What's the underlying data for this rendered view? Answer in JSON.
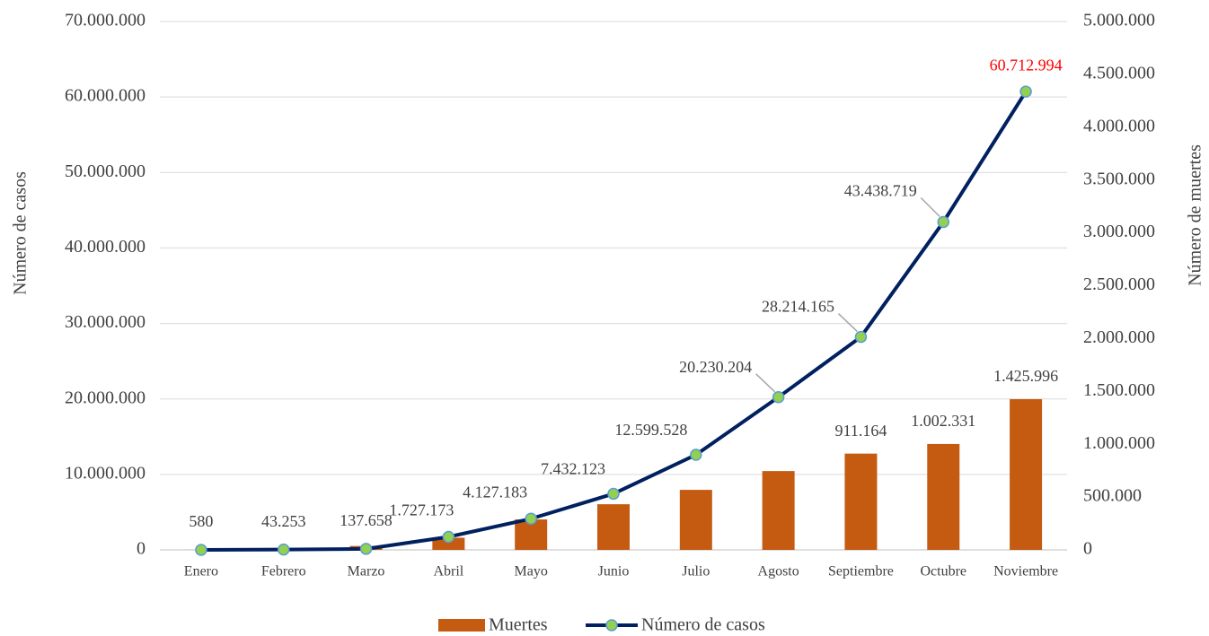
{
  "chart_data": {
    "type": "bar-line",
    "categories": [
      "Enero",
      "Febrero",
      "Marzo",
      "Abril",
      "Mayo",
      "Junio",
      "Julio",
      "Agosto",
      "Septiembre",
      "Octubre",
      "Noviembre"
    ],
    "series": [
      {
        "name": "Muertes",
        "type": "bar",
        "axis": "y2",
        "color": "#c55a11",
        "values": [
          200,
          2900,
          37000,
          115000,
          288000,
          432000,
          568000,
          746000,
          911164,
          1002331,
          1425996
        ],
        "value_labels": [
          null,
          null,
          null,
          null,
          null,
          null,
          null,
          null,
          "911.164",
          "1.002.331",
          "1.425.996"
        ]
      },
      {
        "name": "Número de casos",
        "type": "line",
        "color": "#002060",
        "marker_color": "#92d050",
        "marker_edge_color": "#5b9bd5",
        "values": [
          580,
          43253,
          137658,
          1727173,
          4127183,
          7432123,
          12599528,
          20230204,
          28214165,
          43438719,
          60712994
        ],
        "value_labels": [
          "580",
          "43.253",
          "137.658",
          "1.727.173",
          "4.127.183",
          "7.432.123",
          "12.599.528",
          "20.230.204",
          "28.214.165",
          "43.438.719",
          "60.712.994"
        ],
        "value_label_colors": [
          "#404040",
          "#404040",
          "#404040",
          "#404040",
          "#404040",
          "#404040",
          "#404040",
          "#404040",
          "#404040",
          "#404040",
          "#ff0000"
        ]
      }
    ],
    "ylabel": "Número de casos",
    "y2label": "Número de muertes",
    "ylim": [
      0,
      70000000
    ],
    "yticks": [
      0,
      {
        "value": 10000000,
        "label": "10.000.000"
      },
      {
        "value": 20000000,
        "label": "20.000.000"
      },
      {
        "value": 30000000,
        "label": "30.000.000"
      },
      {
        "value": 40000000,
        "label": "40.000.000"
      },
      {
        "value": 50000000,
        "label": "50.000.000"
      },
      {
        "value": 60000000,
        "label": "60.000.000"
      },
      {
        "value": 70000000,
        "label": "70.000.000"
      }
    ],
    "y2lim": [
      0,
      5000000
    ],
    "y2ticks": [
      0,
      {
        "value": 500000,
        "label": "500.000"
      },
      {
        "value": 1000000,
        "label": "1.000.000"
      },
      {
        "value": 1500000,
        "label": "1.500.000"
      },
      {
        "value": 2000000,
        "label": "2.000.000"
      },
      {
        "value": 2500000,
        "label": "2.500.000"
      },
      {
        "value": 3000000,
        "label": "3.000.000"
      },
      {
        "value": 3500000,
        "label": "3.500.000"
      },
      {
        "value": 4000000,
        "label": "4.000.000"
      },
      {
        "value": 4500000,
        "label": "4.500.000"
      },
      {
        "value": 5000000,
        "label": "5.000.000"
      }
    ],
    "grid": true,
    "legend": "bottom"
  }
}
